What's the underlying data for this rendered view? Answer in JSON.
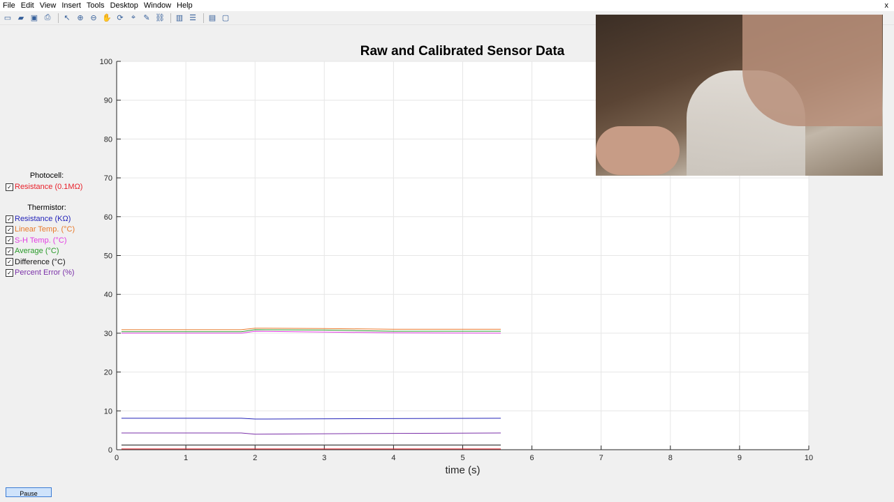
{
  "menu": [
    "File",
    "Edit",
    "View",
    "Insert",
    "Tools",
    "Desktop",
    "Window",
    "Help"
  ],
  "menu_close": "x",
  "toolbar_icons": [
    "new-file-icon",
    "open-folder-icon",
    "save-icon",
    "print-icon",
    "pointer-icon",
    "zoom-in-icon",
    "zoom-out-icon",
    "pan-icon",
    "rotate-icon",
    "data-cursor-icon",
    "brush-icon",
    "link-icon",
    "colorbar-icon",
    "legend-icon",
    "hide-plot-tools-icon",
    "show-plot-tools-icon"
  ],
  "legend": {
    "photocell_heading": "Photocell:",
    "photocell_items": [
      {
        "label": "Resistance (0.1MΩ)",
        "color": "#e8202a",
        "checked": true
      }
    ],
    "thermistor_heading": "Thermistor:",
    "thermistor_items": [
      {
        "label": "Resistance (KΩ)",
        "color": "#2323b8",
        "checked": true
      },
      {
        "label": "Linear Temp. (°C)",
        "color": "#e8792a",
        "checked": true
      },
      {
        "label": "S-H Temp. (°C)",
        "color": "#e23ce2",
        "checked": true
      },
      {
        "label": "Average (°C)",
        "color": "#2a9a2a",
        "checked": true
      },
      {
        "label": "Difference (°C)",
        "color": "#111111",
        "checked": true
      },
      {
        "label": "Percent Error (%)",
        "color": "#7a2fa8",
        "checked": true
      }
    ]
  },
  "pause_label": "Pause",
  "chart_data": {
    "type": "line",
    "title": "Raw and Calibrated Sensor Data",
    "xlabel": "time (s)",
    "ylabel": "",
    "xlim": [
      0,
      10
    ],
    "ylim": [
      0,
      100
    ],
    "xticks": [
      0,
      1,
      2,
      3,
      4,
      5,
      6,
      7,
      8,
      9,
      10
    ],
    "yticks": [
      0,
      10,
      20,
      30,
      40,
      50,
      60,
      70,
      80,
      90,
      100
    ],
    "grid": true,
    "series": [
      {
        "name": "Resistance (0.1MΩ)",
        "color": "#e8202a",
        "x": [
          0.07,
          5.55
        ],
        "y": [
          0.2,
          0.2
        ]
      },
      {
        "name": "Resistance (KΩ)",
        "color": "#2323b8",
        "x": [
          0.07,
          1.8,
          2.0,
          5.55
        ],
        "y": [
          8.1,
          8.1,
          7.9,
          8.1
        ]
      },
      {
        "name": "Linear Temp. (°C)",
        "color": "#e8792a",
        "x": [
          0.07,
          1.8,
          2.0,
          3.0,
          4.0,
          5.55
        ],
        "y": [
          30.9,
          30.9,
          31.3,
          31.2,
          31.0,
          31.0
        ]
      },
      {
        "name": "S-H Temp. (°C)",
        "color": "#e23ce2",
        "x": [
          0.07,
          1.8,
          2.0,
          3.0,
          4.0,
          5.55
        ],
        "y": [
          30.0,
          30.0,
          30.5,
          30.3,
          30.1,
          30.0
        ]
      },
      {
        "name": "Average (°C)",
        "color": "#2a9a2a",
        "x": [
          0.07,
          1.8,
          2.0,
          3.0,
          4.0,
          5.55
        ],
        "y": [
          30.4,
          30.4,
          30.9,
          30.8,
          30.5,
          30.5
        ]
      },
      {
        "name": "Difference (°C)",
        "color": "#111111",
        "x": [
          0.07,
          5.55
        ],
        "y": [
          1.2,
          1.2
        ]
      },
      {
        "name": "Percent Error (%)",
        "color": "#7a2fa8",
        "x": [
          0.07,
          1.8,
          2.0,
          4.0,
          5.55
        ],
        "y": [
          4.3,
          4.3,
          4.0,
          4.2,
          4.3
        ]
      }
    ]
  }
}
